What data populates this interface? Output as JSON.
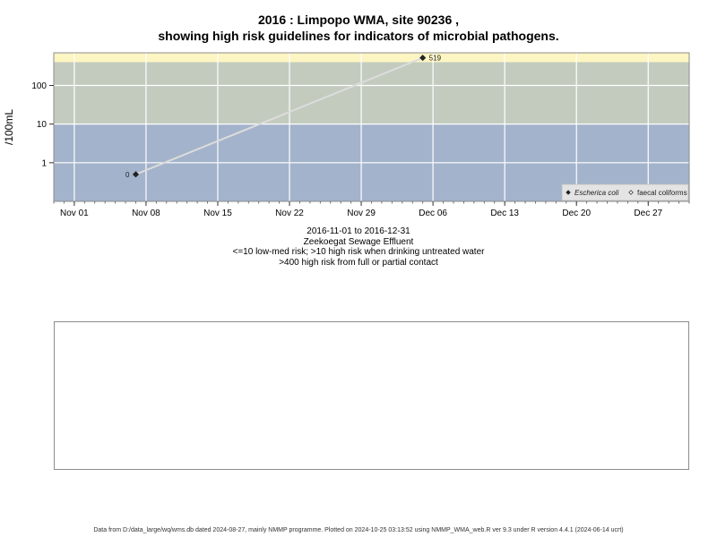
{
  "title_line1": "2016 : Limpopo WMA, site 90236 ,",
  "title_line2": "showing high risk guidelines for indicators of microbial pathogens.",
  "captions": [
    "2016-11-01 to 2016-12-31",
    "Zeekoegat Sewage Effluent",
    "<=10 low-med risk; >10 high risk when drinking untreated water",
    ">400 high risk from full or partial contact"
  ],
  "footer": "Data from D:/data_large/wq/wms.db dated 2024-08-27, mainly NMMP programme. Plotted on 2024-10-25 03:13:52 using NMMP_WMA_web.R ver 9.3 under R version 4.4.1 (2024-06-14 ucrt)",
  "chart_data": {
    "type": "line",
    "ylabel": "/100mL",
    "y_scale": "log10",
    "ylim": [
      0.1,
      700
    ],
    "xlim": [
      "2016-10-30",
      "2016-12-31"
    ],
    "x_ticks": [
      {
        "date": "2016-11-01",
        "label": "Nov 01"
      },
      {
        "date": "2016-11-08",
        "label": "Nov 08"
      },
      {
        "date": "2016-11-15",
        "label": "Nov 15"
      },
      {
        "date": "2016-11-22",
        "label": "Nov 22"
      },
      {
        "date": "2016-11-29",
        "label": "Nov 29"
      },
      {
        "date": "2016-12-06",
        "label": "Dec 06"
      },
      {
        "date": "2016-12-13",
        "label": "Dec 13"
      },
      {
        "date": "2016-12-20",
        "label": "Dec 20"
      },
      {
        "date": "2016-12-27",
        "label": "Dec 27"
      }
    ],
    "y_ticks": [
      {
        "value": 1,
        "label": "1"
      },
      {
        "value": 10,
        "label": "10"
      },
      {
        "value": 100,
        "label": "100"
      }
    ],
    "risk_bands": [
      {
        "from": 0.1,
        "to": 10,
        "color": "#a3b3cb"
      },
      {
        "from": 10,
        "to": 400,
        "color": "#c3cbbf"
      },
      {
        "from": 400,
        "to": 700,
        "color": "#fdf5c2"
      }
    ],
    "grid": true,
    "legend_position": "bottom-right",
    "series": [
      {
        "name": "Escherica coli",
        "marker": "filled-diamond",
        "color": "#222222",
        "line_color": "#dcdcdc",
        "points": [
          {
            "x": "2016-11-07",
            "y": 0.5,
            "label": "0"
          },
          {
            "x": "2016-12-05",
            "y": 519,
            "label": "519"
          }
        ]
      },
      {
        "name": "faecal coliforms",
        "marker": "open-diamond",
        "color": "#222222",
        "points": []
      }
    ]
  }
}
